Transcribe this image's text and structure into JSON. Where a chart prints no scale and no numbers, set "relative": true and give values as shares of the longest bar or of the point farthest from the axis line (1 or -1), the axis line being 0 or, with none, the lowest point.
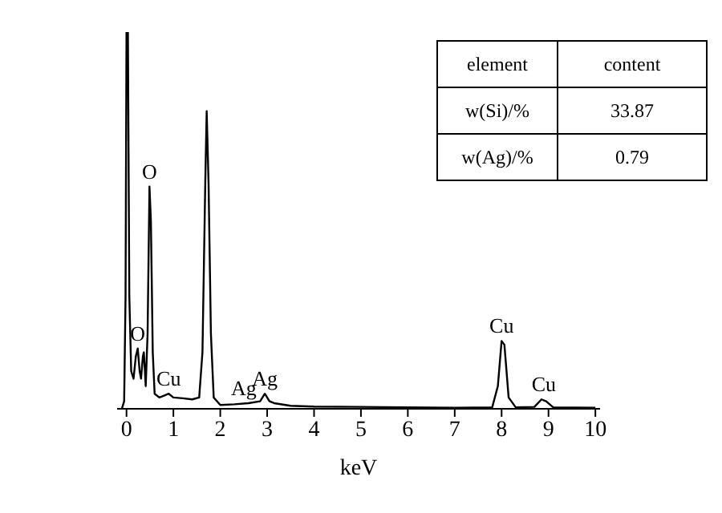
{
  "chart_data": {
    "type": "line",
    "relative": true,
    "xlabel": "keV",
    "xlim": [
      -0.2,
      10.1
    ],
    "xticks": [
      0,
      1,
      2,
      3,
      4,
      5,
      6,
      7,
      8,
      9,
      10
    ],
    "grid": false,
    "legend": false,
    "marker": "none",
    "line_style": "solid",
    "x": [
      -0.1,
      -0.05,
      -0.02,
      0,
      0.03,
      0.06,
      0.1,
      0.15,
      0.2,
      0.24,
      0.28,
      0.31,
      0.35,
      0.37,
      0.41,
      0.45,
      0.49,
      0.52,
      0.56,
      0.6,
      0.7,
      0.8,
      0.9,
      1.0,
      1.2,
      1.4,
      1.55,
      1.62,
      1.68,
      1.71,
      1.75,
      1.8,
      1.86,
      2.0,
      2.3,
      2.6,
      2.85,
      2.95,
      3.05,
      3.15,
      3.5,
      4.0,
      5.0,
      6.0,
      7.0,
      7.8,
      7.92,
      8.0,
      8.06,
      8.15,
      8.3,
      8.7,
      8.85,
      8.95,
      9.1,
      10.0
    ],
    "series": [
      {
        "color": "#000000",
        "values": [
          0,
          0.02,
          0.3,
          1,
          1,
          0.3,
          0.1,
          0.08,
          0.14,
          0.16,
          0.1,
          0.08,
          0.14,
          0.15,
          0.06,
          0.2,
          0.59,
          0.5,
          0.15,
          0.04,
          0.03,
          0.035,
          0.04,
          0.03,
          0.028,
          0.025,
          0.03,
          0.15,
          0.6,
          0.79,
          0.6,
          0.2,
          0.03,
          0.01,
          0.012,
          0.015,
          0.02,
          0.04,
          0.02,
          0.015,
          0.008,
          0.006,
          0.005,
          0.004,
          0.003,
          0.004,
          0.06,
          0.18,
          0.17,
          0.03,
          0.004,
          0.005,
          0.025,
          0.02,
          0.004,
          0.003
        ]
      }
    ],
    "annotations": [
      {
        "text": "O",
        "x": 0.49,
        "y": 0.59
      },
      {
        "text": "O",
        "x": 0.24,
        "y": 0.16
      },
      {
        "text": "Cu",
        "x": 0.9,
        "y": 0.04
      },
      {
        "text": "Ag",
        "x": 2.5,
        "y": 0.015
      },
      {
        "text": "Ag",
        "x": 2.95,
        "y": 0.04
      },
      {
        "text": "Cu",
        "x": 8.0,
        "y": 0.18
      },
      {
        "text": "Cu",
        "x": 8.9,
        "y": 0.025
      },
      "element",
      "content",
      "w(Si)/%",
      "33.87",
      "w(Ag)/%",
      "0.79"
    ]
  }
}
